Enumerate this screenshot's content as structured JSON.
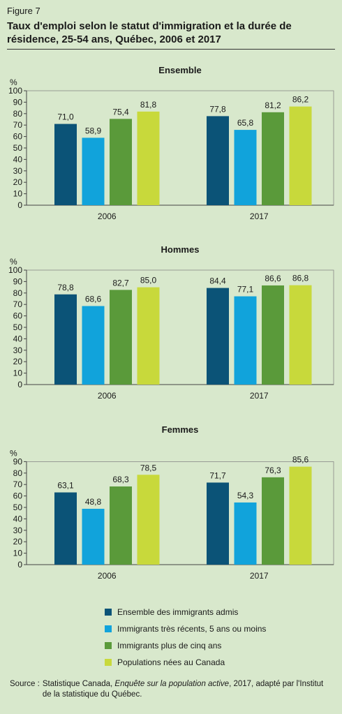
{
  "figure_label": "Figure 7",
  "title": "Taux d'emploi selon le statut d'immigration et la durée de résidence, 25-54 ans, Québec, 2006 et 2017",
  "legend": [
    {
      "name": "Ensemble des immigrants admis",
      "color": "#0b5377"
    },
    {
      "name": "Immigrants très récents, 5 ans ou moins",
      "color": "#11a3db"
    },
    {
      "name": "Immigrants  plus de cinq ans",
      "color": "#5a9a3a"
    },
    {
      "name": "Populations nées au Canada",
      "color": "#c8d93b"
    }
  ],
  "source": {
    "label": "Source :",
    "text_before": "Statistique Canada, ",
    "italic": "Enquête sur la population active",
    "text_after": ", 2017, adapté par l'Institut de la statistique du Québec."
  },
  "chart_data": [
    {
      "type": "bar",
      "title": "Ensemble",
      "ylabel": "%",
      "ylim": [
        0,
        100
      ],
      "yticks": [
        0,
        10,
        20,
        30,
        40,
        50,
        60,
        70,
        80,
        90,
        100
      ],
      "categories": [
        "2006",
        "2017"
      ],
      "series": [
        {
          "name": "Ensemble des immigrants admis",
          "values": [
            71.0,
            77.8
          ],
          "labels": [
            "71,0",
            "77,8"
          ]
        },
        {
          "name": "Immigrants très récents, 5 ans ou moins",
          "values": [
            58.9,
            65.8
          ],
          "labels": [
            "58,9",
            "65,8"
          ]
        },
        {
          "name": "Immigrants  plus de cinq ans",
          "values": [
            75.4,
            81.2
          ],
          "labels": [
            "75,4",
            "81,2"
          ]
        },
        {
          "name": "Populations nées au Canada",
          "values": [
            81.8,
            86.2
          ],
          "labels": [
            "81,8",
            "86,2"
          ]
        }
      ]
    },
    {
      "type": "bar",
      "title": "Hommes",
      "ylabel": "%",
      "ylim": [
        0,
        100
      ],
      "yticks": [
        0,
        10,
        20,
        30,
        40,
        50,
        60,
        70,
        80,
        90,
        100
      ],
      "categories": [
        "2006",
        "2017"
      ],
      "series": [
        {
          "name": "Ensemble des immigrants admis",
          "values": [
            78.8,
            84.4
          ],
          "labels": [
            "78,8",
            "84,4"
          ]
        },
        {
          "name": "Immigrants très récents, 5 ans ou moins",
          "values": [
            68.6,
            77.1
          ],
          "labels": [
            "68,6",
            "77,1"
          ]
        },
        {
          "name": "Immigrants  plus de cinq ans",
          "values": [
            82.7,
            86.6
          ],
          "labels": [
            "82,7",
            "86,6"
          ]
        },
        {
          "name": "Populations nées au Canada",
          "values": [
            85.0,
            86.8
          ],
          "labels": [
            "85,0",
            "86,8"
          ]
        }
      ]
    },
    {
      "type": "bar",
      "title": "Femmes",
      "ylabel": "%",
      "ylim": [
        0,
        90
      ],
      "yticks": [
        0,
        10,
        20,
        30,
        40,
        50,
        60,
        70,
        80,
        90
      ],
      "categories": [
        "2006",
        "2017"
      ],
      "series": [
        {
          "name": "Ensemble des immigrants admis",
          "values": [
            63.1,
            71.7
          ],
          "labels": [
            "63,1",
            "71,7"
          ]
        },
        {
          "name": "Immigrants très récents, 5 ans ou moins",
          "values": [
            48.8,
            54.3
          ],
          "labels": [
            "48,8",
            "54,3"
          ]
        },
        {
          "name": "Immigrants  plus de cinq ans",
          "values": [
            68.3,
            76.3
          ],
          "labels": [
            "68,3",
            "76,3"
          ]
        },
        {
          "name": "Populations nées au Canada",
          "values": [
            78.5,
            85.6
          ],
          "labels": [
            "78,5",
            "85,6"
          ]
        }
      ]
    }
  ]
}
